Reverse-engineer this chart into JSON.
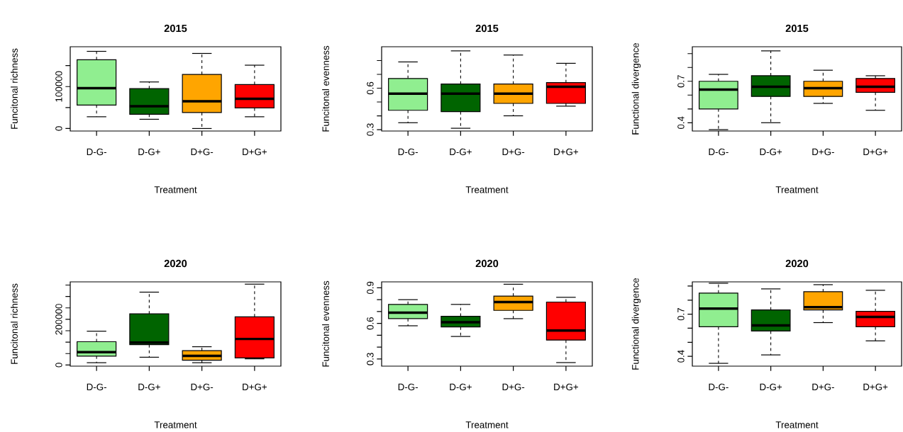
{
  "chart_data": [
    {
      "type": "box",
      "title": "2015",
      "xlabel": "Treatment",
      "ylabel": "Funcitonal richness",
      "categories": [
        "D-G-",
        "D-G+",
        "D+G-",
        "D+G+"
      ],
      "colors": [
        "#90ee90",
        "#006400",
        "#ffa500",
        "#ff0000"
      ],
      "ylim": [
        -6000,
        195000
      ],
      "yticks": [
        0,
        {
          "value": 50000,
          "label": null
        },
        100000,
        {
          "value": 150000,
          "label": null
        }
      ],
      "boxes": [
        {
          "low": 28000,
          "q1": 56000,
          "median": 96000,
          "q3": 164000,
          "high": 184000
        },
        {
          "low": 22000,
          "q1": 34000,
          "median": 53000,
          "q3": 95000,
          "high": 111000
        },
        {
          "low": 0,
          "q1": 38000,
          "median": 65000,
          "q3": 129000,
          "high": 179000
        },
        {
          "low": 28000,
          "q1": 49000,
          "median": 71000,
          "q3": 105000,
          "high": 151000
        }
      ]
    },
    {
      "type": "box",
      "title": "2015",
      "xlabel": "Treatment",
      "ylabel": "Funcitonal evenness",
      "categories": [
        "D-G-",
        "D-G+",
        "D+G-",
        "D+G+"
      ],
      "colors": [
        "#90ee90",
        "#006400",
        "#ffa500",
        "#ff0000"
      ],
      "ylim": [
        0.29,
        0.9
      ],
      "yticks": [
        0.3,
        {
          "value": 0.4,
          "label": null
        },
        {
          "value": 0.5,
          "label": null
        },
        0.6,
        {
          "value": 0.7,
          "label": null
        },
        {
          "value": 0.8,
          "label": null
        }
      ],
      "boxes": [
        {
          "low": 0.35,
          "q1": 0.44,
          "median": 0.56,
          "q3": 0.67,
          "high": 0.79
        },
        {
          "low": 0.31,
          "q1": 0.43,
          "median": 0.56,
          "q3": 0.63,
          "high": 0.87
        },
        {
          "low": 0.4,
          "q1": 0.49,
          "median": 0.56,
          "q3": 0.63,
          "high": 0.84
        },
        {
          "low": 0.47,
          "q1": 0.49,
          "median": 0.61,
          "q3": 0.64,
          "high": 0.78
        }
      ]
    },
    {
      "type": "box",
      "title": "2015",
      "xlabel": "Treatment",
      "ylabel": "Functional divergence",
      "categories": [
        "D-G-",
        "D-G+",
        "D+G-",
        "D+G+"
      ],
      "colors": [
        "#90ee90",
        "#006400",
        "#ffa500",
        "#ff0000"
      ],
      "ylim": [
        0.34,
        0.95
      ],
      "yticks": [
        0.4,
        {
          "value": 0.5,
          "label": null
        },
        {
          "value": 0.6,
          "label": null
        },
        0.7,
        {
          "value": 0.8,
          "label": null
        },
        {
          "value": 0.9,
          "label": null
        }
      ],
      "boxes": [
        {
          "low": 0.35,
          "q1": 0.5,
          "median": 0.64,
          "q3": 0.7,
          "high": 0.75
        },
        {
          "low": 0.4,
          "q1": 0.59,
          "median": 0.66,
          "q3": 0.74,
          "high": 0.92
        },
        {
          "low": 0.54,
          "q1": 0.59,
          "median": 0.65,
          "q3": 0.7,
          "high": 0.78
        },
        {
          "low": 0.49,
          "q1": 0.62,
          "median": 0.66,
          "q3": 0.72,
          "high": 0.74
        }
      ]
    },
    {
      "type": "box",
      "title": "2020",
      "xlabel": "Treatment",
      "ylabel": "Funcitonal richness",
      "categories": [
        "D-G-",
        "D-G+",
        "D+G-",
        "D+G+"
      ],
      "colors": [
        "#90ee90",
        "#006400",
        "#ffa500",
        "#ff0000"
      ],
      "ylim": [
        -5000,
        364000
      ],
      "yticks": [
        0,
        {
          "value": 50000,
          "label": null
        },
        {
          "value": 100000,
          "label": null
        },
        {
          "value": 150000,
          "label": null
        },
        200000,
        {
          "value": 250000,
          "label": null
        },
        {
          "value": 300000,
          "label": null
        },
        {
          "value": 350000,
          "label": null
        }
      ],
      "boxes": [
        {
          "low": 10000,
          "q1": 39000,
          "median": 56000,
          "q3": 102000,
          "high": 148000
        },
        {
          "low": 34000,
          "q1": 89000,
          "median": 98000,
          "q3": 224000,
          "high": 319000
        },
        {
          "low": 10000,
          "q1": 21000,
          "median": 40000,
          "q3": 63000,
          "high": 80000
        },
        {
          "low": 27000,
          "q1": 31000,
          "median": 114000,
          "q3": 211000,
          "high": 354000
        }
      ]
    },
    {
      "type": "box",
      "title": "2020",
      "xlabel": "Treatment",
      "ylabel": "Funcitonal evenness",
      "categories": [
        "D-G-",
        "D-G+",
        "D+G-",
        "D+G+"
      ],
      "colors": [
        "#90ee90",
        "#006400",
        "#ffa500",
        "#ff0000"
      ],
      "ylim": [
        0.24,
        0.95
      ],
      "yticks": [
        0.3,
        {
          "value": 0.4,
          "label": null
        },
        {
          "value": 0.5,
          "label": null
        },
        0.6,
        {
          "value": 0.7,
          "label": null
        },
        {
          "value": 0.8,
          "label": null
        },
        0.9
      ],
      "boxes": [
        {
          "low": 0.58,
          "q1": 0.64,
          "median": 0.69,
          "q3": 0.76,
          "high": 0.8
        },
        {
          "low": 0.49,
          "q1": 0.57,
          "median": 0.61,
          "q3": 0.66,
          "high": 0.76
        },
        {
          "low": 0.64,
          "q1": 0.71,
          "median": 0.78,
          "q3": 0.83,
          "high": 0.93
        },
        {
          "low": 0.27,
          "q1": 0.46,
          "median": 0.54,
          "q3": 0.78,
          "high": 0.82
        }
      ]
    },
    {
      "type": "box",
      "title": "2020",
      "xlabel": "Treatment",
      "ylabel": "Functional divergence",
      "categories": [
        "D-G-",
        "D-G+",
        "D+G-",
        "D+G+"
      ],
      "colors": [
        "#90ee90",
        "#006400",
        "#ffa500",
        "#ff0000"
      ],
      "ylim": [
        0.33,
        0.93
      ],
      "yticks": [
        0.4,
        {
          "value": 0.5,
          "label": null
        },
        {
          "value": 0.6,
          "label": null
        },
        0.7,
        {
          "value": 0.8,
          "label": null
        },
        {
          "value": 0.9,
          "label": null
        }
      ],
      "boxes": [
        {
          "low": 0.35,
          "q1": 0.61,
          "median": 0.74,
          "q3": 0.85,
          "high": 0.92
        },
        {
          "low": 0.41,
          "q1": 0.58,
          "median": 0.62,
          "q3": 0.73,
          "high": 0.88
        },
        {
          "low": 0.64,
          "q1": 0.73,
          "median": 0.75,
          "q3": 0.86,
          "high": 0.91
        },
        {
          "low": 0.51,
          "q1": 0.61,
          "median": 0.68,
          "q3": 0.72,
          "high": 0.87
        }
      ]
    }
  ]
}
